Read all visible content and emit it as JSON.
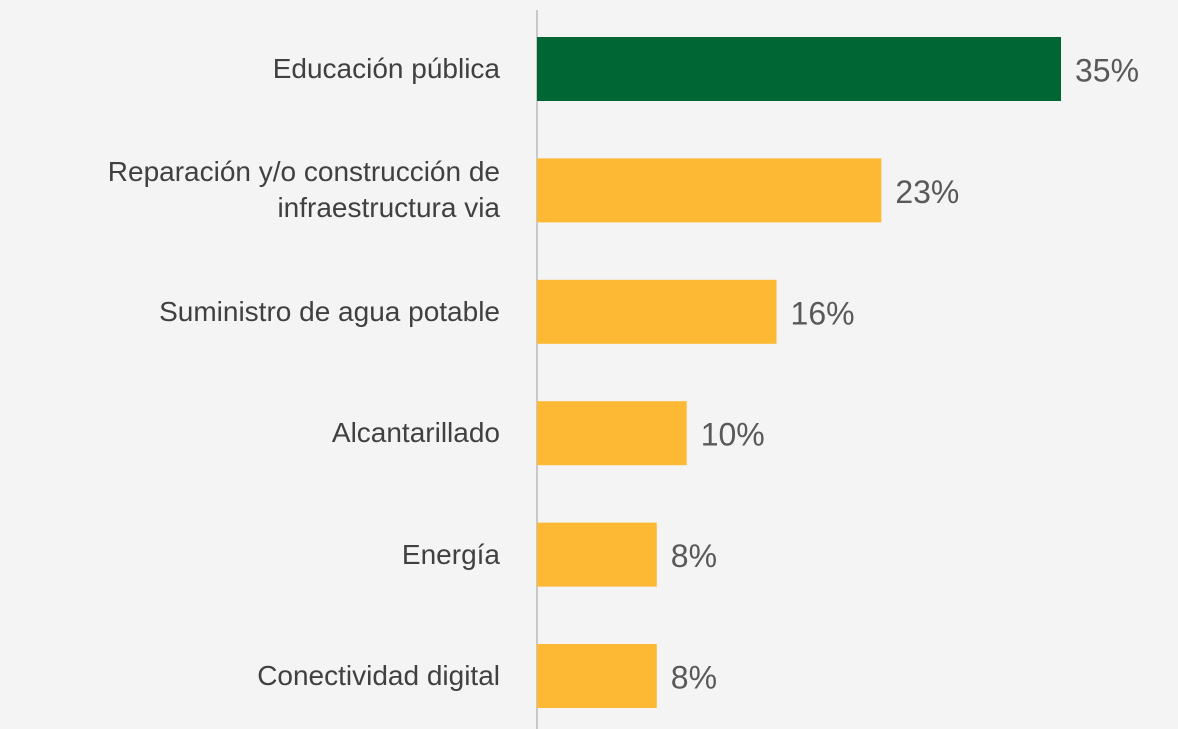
{
  "chart_data": {
    "type": "bar",
    "orientation": "horizontal",
    "categories": [
      "Educación pública",
      "Reparación y/o construcción de infraestructura via",
      "Suministro de agua potable",
      "Alcantarillado",
      "Energía",
      "Conectividad digital"
    ],
    "values": [
      35,
      23,
      16,
      10,
      8,
      8
    ],
    "value_labels": [
      "35%",
      "23%",
      "16%",
      "10%",
      "8%",
      "8%"
    ],
    "colors": [
      "#006633",
      "#fdb933",
      "#fdb933",
      "#fdb933",
      "#fdb933",
      "#fdb933"
    ]
  }
}
